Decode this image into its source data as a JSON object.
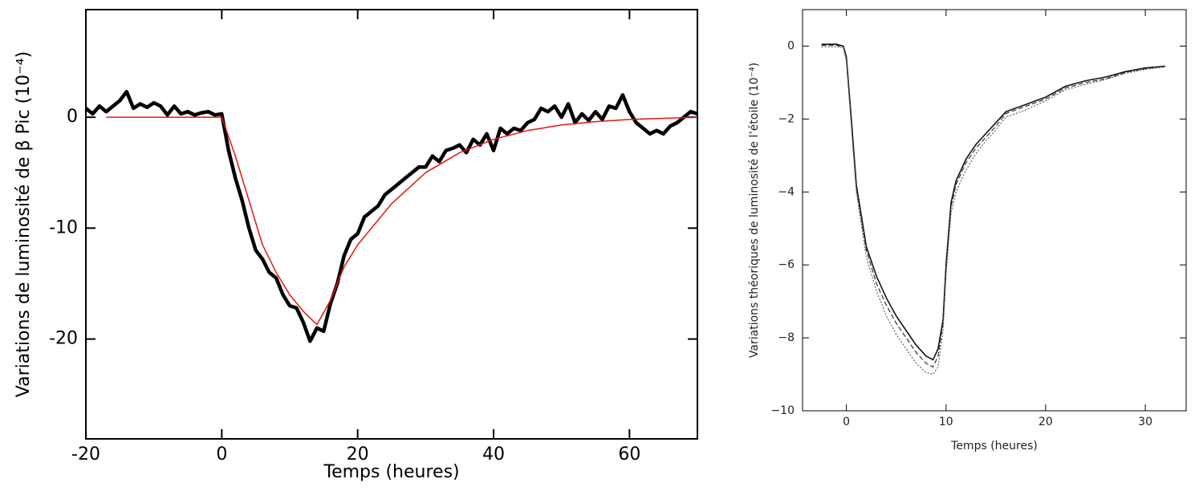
{
  "chart_data": [
    {
      "type": "line",
      "xlabel": "Temps (heures)",
      "ylabel": "Variations de luminosité de β Pic (10⁻⁴)",
      "xlim": [
        -20,
        70
      ],
      "ylim": [
        -29,
        9.7
      ],
      "xticks": [
        -20,
        0,
        20,
        40,
        60
      ],
      "yticks": [
        -20,
        -10,
        0
      ],
      "series": [
        {
          "color": "#000000",
          "width": 4.5,
          "x": [
            -20,
            -19,
            -18,
            -17,
            -16,
            -15,
            -14,
            -13,
            -12,
            -11,
            -10,
            -9,
            -8,
            -7,
            -6,
            -5,
            -4,
            -3,
            -2,
            -1,
            0,
            1,
            2,
            3,
            4,
            5,
            6,
            7,
            8,
            9,
            10,
            11,
            12,
            13,
            14,
            15,
            16,
            17,
            18,
            19,
            20,
            21,
            22,
            23,
            24,
            25,
            26,
            27,
            28,
            29,
            30,
            31,
            32,
            33,
            34,
            35,
            36,
            37,
            38,
            39,
            40,
            41,
            42,
            43,
            44,
            45,
            46,
            47,
            48,
            49,
            50,
            51,
            52,
            53,
            54,
            55,
            56,
            57,
            58,
            59,
            60,
            61,
            62,
            63,
            64,
            65,
            66,
            67,
            68,
            69,
            70
          ],
          "values": [
            0.8,
            0.3,
            1.0,
            0.5,
            1.0,
            1.5,
            2.3,
            0.8,
            1.2,
            0.9,
            1.3,
            1.0,
            0.2,
            1.0,
            0.3,
            0.5,
            0.2,
            0.4,
            0.5,
            0.2,
            0.3,
            -3,
            -5.5,
            -7.5,
            -10,
            -12,
            -12.8,
            -14,
            -14.5,
            -16,
            -17,
            -17.2,
            -18.5,
            -20.2,
            -19,
            -19.3,
            -16.8,
            -15,
            -12.5,
            -11,
            -10.5,
            -9,
            -8.5,
            -8,
            -7,
            -6.5,
            -6,
            -5.5,
            -5,
            -4.5,
            -4.5,
            -3.5,
            -4,
            -3,
            -2.8,
            -2.5,
            -3.2,
            -2,
            -2.5,
            -1.5,
            -3,
            -1,
            -1.5,
            -1,
            -1.2,
            -0.5,
            -0.2,
            0.8,
            0.5,
            1.0,
            0,
            1.2,
            -0.5,
            0.3,
            -0.3,
            0.5,
            -0.2,
            1.0,
            0.8,
            2.0,
            0.5,
            -0.5,
            -1.0,
            -1.5,
            -1.2,
            -1.5,
            -0.8,
            -0.5,
            0,
            0.5,
            0.3
          ]
        },
        {
          "color": "#e8150f",
          "width": 1.5,
          "x": [
            -17,
            -10,
            0,
            2,
            4,
            6,
            8,
            10,
            12,
            14,
            16,
            18,
            20,
            25,
            30,
            35,
            40,
            45,
            50,
            55,
            60,
            65,
            70
          ],
          "values": [
            0,
            0,
            0,
            -3.5,
            -7.5,
            -11.5,
            -14,
            -16,
            -17.5,
            -18.7,
            -16.5,
            -13.5,
            -11.5,
            -7.8,
            -5,
            -3.2,
            -2,
            -1.2,
            -0.7,
            -0.4,
            -0.2,
            -0.1,
            0
          ]
        }
      ]
    },
    {
      "type": "line",
      "xlabel": "Temps (heures)",
      "ylabel": "Variations théoriques de luminosité de l’étoile (10⁻⁴)",
      "xlim": [
        -4.4,
        34.1
      ],
      "ylim": [
        -10,
        1
      ],
      "xticks": [
        0,
        10,
        20,
        30
      ],
      "yticks": [
        {
          "value": -10,
          "label": "−10"
        },
        {
          "value": -8,
          "label": "−8"
        },
        {
          "value": -6,
          "label": "−6"
        },
        {
          "value": -4,
          "label": "−4"
        },
        {
          "value": -2,
          "label": "−2"
        },
        0
      ],
      "x": [
        -2.5,
        -1,
        -0.3,
        0,
        0.5,
        1,
        2,
        3,
        4,
        5,
        6,
        7,
        8,
        8.7,
        9.2,
        9.7,
        10,
        10.5,
        11,
        12,
        13,
        14,
        15,
        16,
        18,
        20,
        22,
        24,
        26,
        28,
        30,
        32
      ],
      "series": [
        {
          "color": "#111111",
          "width": 1.6,
          "dash": "none",
          "values": [
            0.05,
            0.05,
            0.0,
            -0.3,
            -2,
            -3.8,
            -5.5,
            -6.3,
            -6.9,
            -7.4,
            -7.8,
            -8.2,
            -8.5,
            -8.6,
            -8.3,
            -7.5,
            -6,
            -4.3,
            -3.7,
            -3.1,
            -2.7,
            -2.4,
            -2.1,
            -1.8,
            -1.6,
            -1.4,
            -1.1,
            -0.95,
            -0.85,
            -0.7,
            -0.6,
            -0.55
          ]
        },
        {
          "color": "#333333",
          "width": 1.2,
          "dash": "6,3",
          "values": [
            0.02,
            0.02,
            -0.02,
            -0.35,
            -2.1,
            -3.9,
            -5.6,
            -6.5,
            -7.1,
            -7.6,
            -8.0,
            -8.4,
            -8.7,
            -8.8,
            -8.5,
            -7.6,
            -6.1,
            -4.4,
            -3.8,
            -3.2,
            -2.8,
            -2.5,
            -2.2,
            -1.85,
            -1.65,
            -1.45,
            -1.15,
            -1.0,
            -0.9,
            -0.72,
            -0.62,
            -0.56
          ]
        },
        {
          "color": "#555555",
          "width": 1.1,
          "dash": "2,2",
          "values": [
            -0.02,
            -0.02,
            -0.05,
            -0.4,
            -2.2,
            -4.0,
            -5.8,
            -6.7,
            -7.4,
            -7.9,
            -8.3,
            -8.7,
            -8.95,
            -9.0,
            -8.8,
            -7.8,
            -6.3,
            -4.6,
            -4.0,
            -3.4,
            -2.95,
            -2.6,
            -2.3,
            -1.95,
            -1.75,
            -1.5,
            -1.2,
            -1.05,
            -0.92,
            -0.75,
            -0.64,
            -0.57
          ]
        }
      ]
    }
  ]
}
